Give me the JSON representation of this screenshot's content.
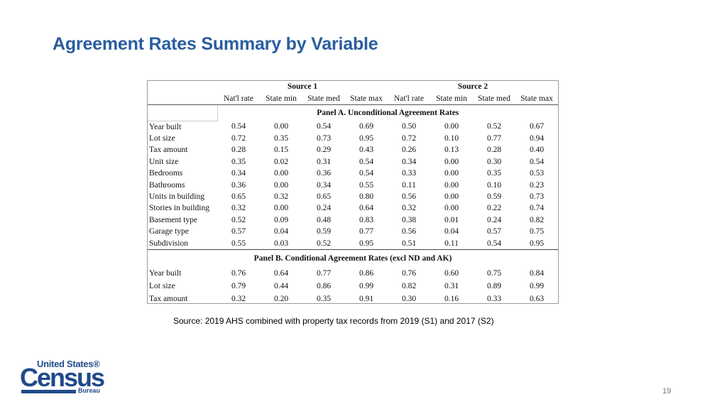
{
  "title": "Agreement Rates Summary by Variable",
  "table": {
    "source_groups": [
      "Source 1",
      "Source 2"
    ],
    "columns": [
      "Nat'l rate",
      "State min",
      "State med",
      "State max",
      "Nat'l rate",
      "State min",
      "State med",
      "State max"
    ],
    "panel_a": {
      "title": "Panel A. Unconditional Agreement Rates",
      "rows": [
        {
          "label": "Year built",
          "values": [
            "0.54",
            "0.00",
            "0.54",
            "0.69",
            "0.50",
            "0.00",
            "0.52",
            "0.67"
          ]
        },
        {
          "label": "Lot size",
          "values": [
            "0.72",
            "0.35",
            "0.73",
            "0.95",
            "0.72",
            "0.10",
            "0.77",
            "0.94"
          ]
        },
        {
          "label": "Tax amount",
          "values": [
            "0.28",
            "0.15",
            "0.29",
            "0.43",
            "0.26",
            "0.13",
            "0.28",
            "0.40"
          ]
        },
        {
          "label": "Unit size",
          "values": [
            "0.35",
            "0.02",
            "0.31",
            "0.54",
            "0.34",
            "0.00",
            "0.30",
            "0.54"
          ]
        },
        {
          "label": "Bedrooms",
          "values": [
            "0.34",
            "0.00",
            "0.36",
            "0.54",
            "0.33",
            "0.00",
            "0.35",
            "0.53"
          ]
        },
        {
          "label": "Bathrooms",
          "values": [
            "0.36",
            "0.00",
            "0.34",
            "0.55",
            "0.11",
            "0.00",
            "0.10",
            "0.23"
          ]
        },
        {
          "label": "Units in building",
          "values": [
            "0.65",
            "0.32",
            "0.65",
            "0.80",
            "0.56",
            "0.00",
            "0.59",
            "0.73"
          ]
        },
        {
          "label": "Stories in building",
          "values": [
            "0.32",
            "0.00",
            "0.24",
            "0.64",
            "0.32",
            "0.00",
            "0.22",
            "0.74"
          ]
        },
        {
          "label": "Basement type",
          "values": [
            "0.52",
            "0.09",
            "0.48",
            "0.83",
            "0.38",
            "0.01",
            "0.24",
            "0.82"
          ]
        },
        {
          "label": "Garage type",
          "values": [
            "0.57",
            "0.04",
            "0.59",
            "0.77",
            "0.56",
            "0.04",
            "0.57",
            "0.75"
          ]
        },
        {
          "label": "Subdivision",
          "values": [
            "0.55",
            "0.03",
            "0.52",
            "0.95",
            "0.51",
            "0.11",
            "0.54",
            "0.95"
          ]
        }
      ]
    },
    "panel_b": {
      "title": "Panel B. Conditional Agreement Rates (excl ND and AK)",
      "rows": [
        {
          "label": "Year built",
          "values": [
            "0.76",
            "0.64",
            "0.77",
            "0.86",
            "0.76",
            "0.60",
            "0.75",
            "0.84"
          ]
        },
        {
          "label": "Lot size",
          "values": [
            "0.79",
            "0.44",
            "0.86",
            "0.99",
            "0.82",
            "0.31",
            "0.89",
            "0.99"
          ]
        },
        {
          "label": "Tax amount",
          "values": [
            "0.32",
            "0.20",
            "0.35",
            "0.91",
            "0.30",
            "0.16",
            "0.33",
            "0.63"
          ]
        }
      ]
    }
  },
  "source_note": "Source: 2019 AHS combined with property tax records from 2019 (S1) and 2017 (S2)",
  "logo": {
    "line1": "United States®",
    "line2": "Census",
    "line3": "Bureau"
  },
  "page_number": "19",
  "colors": {
    "title": "#2a5d9f",
    "logo": "#1f4a8a"
  }
}
